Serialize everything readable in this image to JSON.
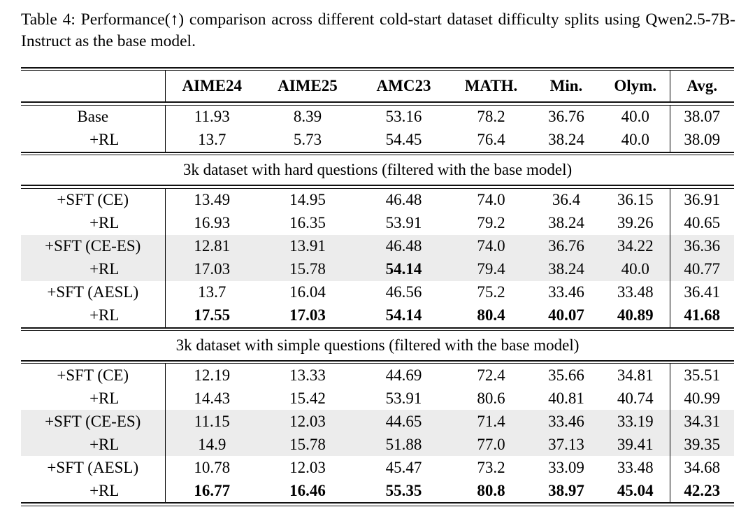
{
  "caption": "Table 4: Performance(↑) comparison across different cold-start dataset difficulty splits using Qwen2.5-7B-Instruct as the base model.",
  "colors": {
    "row_shade": "#ececec",
    "text": "#000000",
    "rule": "#111111"
  },
  "table": {
    "columns": [
      "",
      "AIME24",
      "AIME25",
      "AMC23",
      "MATH.",
      "Min.",
      "Olym.",
      "Avg."
    ],
    "sections": [
      {
        "header": null,
        "rows": [
          {
            "label": "Base",
            "values": [
              "11.93",
              "8.39",
              "53.16",
              "78.2",
              "36.76",
              "40.0",
              "38.07"
            ],
            "bold": [],
            "shaded": false
          },
          {
            "label": "+RL",
            "values": [
              "13.7",
              "5.73",
              "54.45",
              "76.4",
              "38.24",
              "40.0",
              "38.09"
            ],
            "bold": [],
            "shaded": false
          }
        ]
      },
      {
        "header": "3k dataset with hard questions (filtered with the base model)",
        "rows": [
          {
            "label": "+SFT (CE)",
            "values": [
              "13.49",
              "14.95",
              "46.48",
              "74.0",
              "36.4",
              "36.15",
              "36.91"
            ],
            "bold": [],
            "shaded": false
          },
          {
            "label": "+RL",
            "values": [
              "16.93",
              "16.35",
              "53.91",
              "79.2",
              "38.24",
              "39.26",
              "40.65"
            ],
            "bold": [],
            "shaded": false
          },
          {
            "label": "+SFT (CE-ES)",
            "values": [
              "12.81",
              "13.91",
              "46.48",
              "74.0",
              "36.76",
              "34.22",
              "36.36"
            ],
            "bold": [],
            "shaded": true
          },
          {
            "label": "+RL",
            "values": [
              "17.03",
              "15.78",
              "54.14",
              "79.4",
              "38.24",
              "40.0",
              "40.77"
            ],
            "bold": [
              2
            ],
            "shaded": true
          },
          {
            "label": "+SFT (AESL)",
            "values": [
              "13.7",
              "16.04",
              "46.56",
              "75.2",
              "33.46",
              "33.48",
              "36.41"
            ],
            "bold": [],
            "shaded": false
          },
          {
            "label": "+RL",
            "values": [
              "17.55",
              "17.03",
              "54.14",
              "80.4",
              "40.07",
              "40.89",
              "41.68"
            ],
            "bold": [
              0,
              1,
              2,
              3,
              4,
              5,
              6
            ],
            "shaded": false
          }
        ]
      },
      {
        "header": "3k dataset with simple questions (filtered with the base model)",
        "rows": [
          {
            "label": "+SFT (CE)",
            "values": [
              "12.19",
              "13.33",
              "44.69",
              "72.4",
              "35.66",
              "34.81",
              "35.51"
            ],
            "bold": [],
            "shaded": false
          },
          {
            "label": "+RL",
            "values": [
              "14.43",
              "15.42",
              "53.91",
              "80.6",
              "40.81",
              "40.74",
              "40.99"
            ],
            "bold": [],
            "shaded": false
          },
          {
            "label": "+SFT (CE-ES)",
            "values": [
              "11.15",
              "12.03",
              "44.65",
              "71.4",
              "33.46",
              "33.19",
              "34.31"
            ],
            "bold": [],
            "shaded": true
          },
          {
            "label": "+RL",
            "values": [
              "14.9",
              "15.78",
              "51.88",
              "77.0",
              "37.13",
              "39.41",
              "39.35"
            ],
            "bold": [],
            "shaded": true
          },
          {
            "label": "+SFT (AESL)",
            "values": [
              "10.78",
              "12.03",
              "45.47",
              "73.2",
              "33.09",
              "33.48",
              "34.68"
            ],
            "bold": [],
            "shaded": false
          },
          {
            "label": "+RL",
            "values": [
              "16.77",
              "16.46",
              "55.35",
              "80.8",
              "38.97",
              "45.04",
              "42.23"
            ],
            "bold": [
              0,
              1,
              2,
              3,
              4,
              5,
              6
            ],
            "shaded": false
          }
        ]
      }
    ]
  }
}
